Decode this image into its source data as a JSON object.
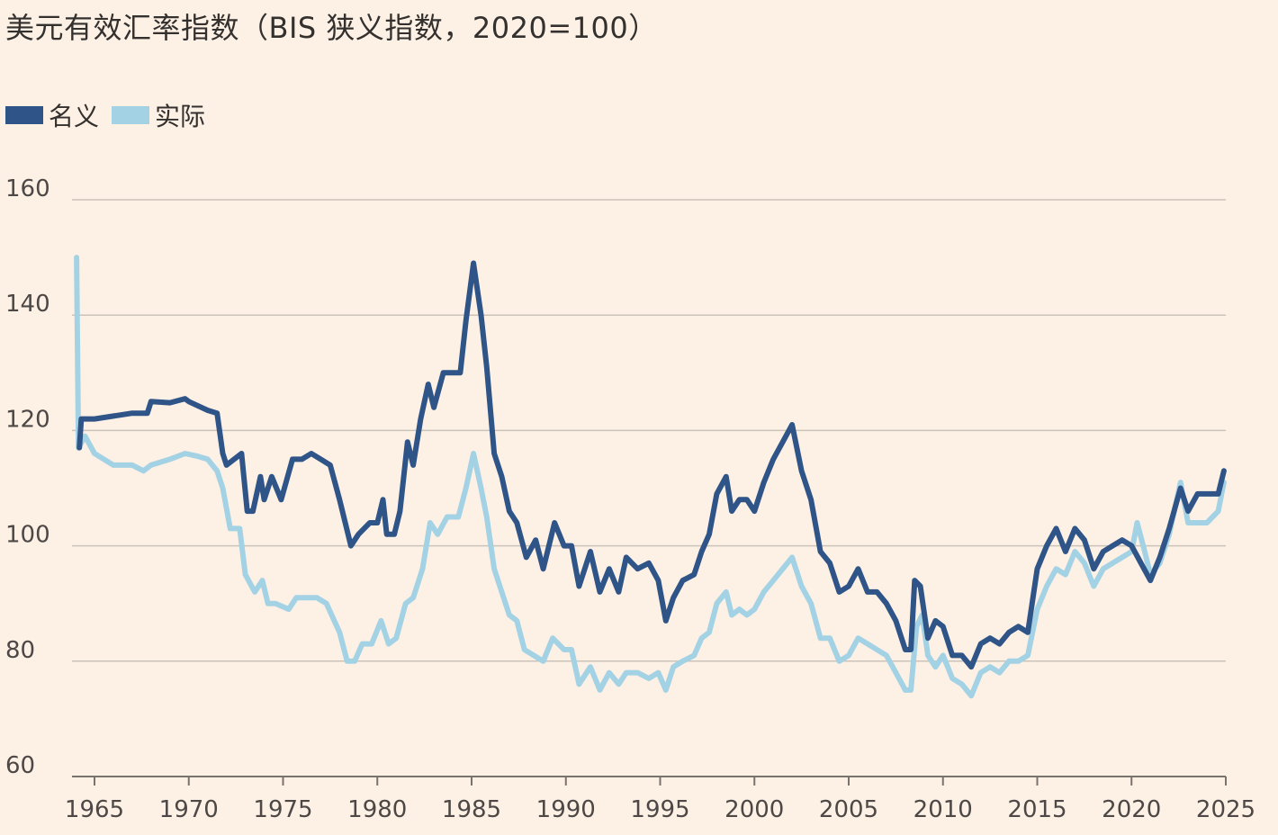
{
  "colors": {
    "background": "#FDF1E6",
    "nominal": "#2F5487",
    "real": "#A4D2E5",
    "grid": "#CBC2B8",
    "axis": "#7A736D"
  },
  "chart_data": {
    "type": "line",
    "title": "美元有效汇率指数（BIS 狭义指数，2020=100）",
    "xlabel": "",
    "ylabel": "",
    "xlim": [
      1964,
      2025
    ],
    "ylim": [
      60,
      160
    ],
    "yticks": [
      "60",
      "80",
      "100",
      "120",
      "140",
      "160"
    ],
    "xticks": [
      "1965",
      "1970",
      "1975",
      "1980",
      "1985",
      "1990",
      "1995",
      "2000",
      "2005",
      "2010",
      "2015",
      "2020",
      "2025"
    ],
    "grid": true,
    "legend_position": "top-left",
    "series": [
      {
        "name": "名义",
        "color": "#2F5487",
        "points": [
          [
            1964.2,
            117
          ],
          [
            1964.3,
            122
          ],
          [
            1965,
            122
          ],
          [
            1966,
            122.5
          ],
          [
            1967,
            123
          ],
          [
            1967.8,
            123
          ],
          [
            1968,
            125
          ],
          [
            1969,
            124.8
          ],
          [
            1969.8,
            125.5
          ],
          [
            1970,
            125
          ],
          [
            1971,
            123.5
          ],
          [
            1971.5,
            123
          ],
          [
            1971.8,
            116
          ],
          [
            1972,
            114
          ],
          [
            1972.8,
            116
          ],
          [
            1973.1,
            106
          ],
          [
            1973.4,
            106
          ],
          [
            1973.8,
            112
          ],
          [
            1974,
            108
          ],
          [
            1974.4,
            112
          ],
          [
            1974.9,
            108
          ],
          [
            1975.5,
            115
          ],
          [
            1976,
            115
          ],
          [
            1976.5,
            116
          ],
          [
            1977,
            115
          ],
          [
            1977.5,
            114
          ],
          [
            1978,
            108
          ],
          [
            1978.3,
            104
          ],
          [
            1978.6,
            100
          ],
          [
            1979,
            102
          ],
          [
            1979.6,
            104
          ],
          [
            1980,
            104
          ],
          [
            1980.3,
            108
          ],
          [
            1980.5,
            102
          ],
          [
            1980.9,
            102
          ],
          [
            1981.2,
            106
          ],
          [
            1981.6,
            118
          ],
          [
            1981.9,
            114
          ],
          [
            1982.3,
            122
          ],
          [
            1982.7,
            128
          ],
          [
            1983,
            124
          ],
          [
            1983.5,
            130
          ],
          [
            1983.9,
            130
          ],
          [
            1984.4,
            130
          ],
          [
            1984.7,
            139
          ],
          [
            1985.1,
            149
          ],
          [
            1985.5,
            140
          ],
          [
            1985.8,
            131
          ],
          [
            1986.2,
            116
          ],
          [
            1986.6,
            112
          ],
          [
            1987,
            106
          ],
          [
            1987.4,
            104
          ],
          [
            1987.9,
            98
          ],
          [
            1988.4,
            101
          ],
          [
            1988.8,
            96
          ],
          [
            1989.4,
            104
          ],
          [
            1989.9,
            100
          ],
          [
            1990.3,
            100
          ],
          [
            1990.7,
            93
          ],
          [
            1991.3,
            99
          ],
          [
            1991.8,
            92
          ],
          [
            1992.3,
            96
          ],
          [
            1992.8,
            92
          ],
          [
            1993.2,
            98
          ],
          [
            1993.8,
            96
          ],
          [
            1994.4,
            97
          ],
          [
            1994.9,
            94
          ],
          [
            1995.3,
            87
          ],
          [
            1995.7,
            91
          ],
          [
            1996.2,
            94
          ],
          [
            1996.8,
            95
          ],
          [
            1997.2,
            99
          ],
          [
            1997.6,
            102
          ],
          [
            1998,
            109
          ],
          [
            1998.5,
            112
          ],
          [
            1998.8,
            106
          ],
          [
            1999.2,
            108
          ],
          [
            1999.6,
            108
          ],
          [
            2000,
            106
          ],
          [
            2000.5,
            111
          ],
          [
            2001,
            115
          ],
          [
            2001.5,
            118
          ],
          [
            2002,
            121
          ],
          [
            2002.5,
            113
          ],
          [
            2003,
            108
          ],
          [
            2003.5,
            99
          ],
          [
            2004,
            97
          ],
          [
            2004.5,
            92
          ],
          [
            2005,
            93
          ],
          [
            2005.5,
            96
          ],
          [
            2006,
            92
          ],
          [
            2006.5,
            92
          ],
          [
            2007,
            90
          ],
          [
            2007.5,
            87
          ],
          [
            2008,
            82
          ],
          [
            2008.3,
            82
          ],
          [
            2008.5,
            94
          ],
          [
            2008.8,
            93
          ],
          [
            2009.2,
            84
          ],
          [
            2009.6,
            87
          ],
          [
            2010,
            86
          ],
          [
            2010.5,
            81
          ],
          [
            2011,
            81
          ],
          [
            2011.5,
            79
          ],
          [
            2012,
            83
          ],
          [
            2012.5,
            84
          ],
          [
            2013,
            83
          ],
          [
            2013.5,
            85
          ],
          [
            2014,
            86
          ],
          [
            2014.5,
            85
          ],
          [
            2015,
            96
          ],
          [
            2015.5,
            100
          ],
          [
            2016,
            103
          ],
          [
            2016.5,
            99
          ],
          [
            2017,
            103
          ],
          [
            2017.5,
            101
          ],
          [
            2018,
            96
          ],
          [
            2018.5,
            99
          ],
          [
            2019,
            100
          ],
          [
            2019.5,
            101
          ],
          [
            2020,
            100
          ],
          [
            2020.5,
            97
          ],
          [
            2021,
            94
          ],
          [
            2021.5,
            98
          ],
          [
            2022,
            103
          ],
          [
            2022.6,
            110
          ],
          [
            2023,
            106
          ],
          [
            2023.5,
            109
          ],
          [
            2024,
            109
          ],
          [
            2024.6,
            109
          ],
          [
            2024.9,
            113
          ]
        ]
      },
      {
        "name": "实际",
        "color": "#A4D2E5",
        "points": [
          [
            1964.05,
            150
          ],
          [
            1964.15,
            117
          ],
          [
            1964.5,
            119
          ],
          [
            1965,
            116
          ],
          [
            1966,
            114
          ],
          [
            1967,
            114
          ],
          [
            1967.6,
            113
          ],
          [
            1968,
            114
          ],
          [
            1969,
            115
          ],
          [
            1969.8,
            116
          ],
          [
            1970.5,
            115.5
          ],
          [
            1971,
            115
          ],
          [
            1971.5,
            113
          ],
          [
            1971.8,
            110
          ],
          [
            1972.2,
            103
          ],
          [
            1972.7,
            103
          ],
          [
            1973,
            95
          ],
          [
            1973.5,
            92
          ],
          [
            1973.9,
            94
          ],
          [
            1974.2,
            90
          ],
          [
            1974.6,
            90
          ],
          [
            1975.3,
            89
          ],
          [
            1975.7,
            91
          ],
          [
            1976.2,
            91
          ],
          [
            1976.8,
            91
          ],
          [
            1977.3,
            90
          ],
          [
            1978,
            85
          ],
          [
            1978.4,
            80
          ],
          [
            1978.8,
            80
          ],
          [
            1979.2,
            83
          ],
          [
            1979.7,
            83
          ],
          [
            1980.2,
            87
          ],
          [
            1980.6,
            83
          ],
          [
            1981,
            84
          ],
          [
            1981.5,
            90
          ],
          [
            1981.9,
            91
          ],
          [
            1982.4,
            96
          ],
          [
            1982.8,
            104
          ],
          [
            1983.2,
            102
          ],
          [
            1983.7,
            105
          ],
          [
            1984.3,
            105
          ],
          [
            1984.7,
            110
          ],
          [
            1985.1,
            116
          ],
          [
            1985.5,
            110
          ],
          [
            1985.8,
            105
          ],
          [
            1986.2,
            96
          ],
          [
            1986.6,
            92
          ],
          [
            1987,
            88
          ],
          [
            1987.4,
            87
          ],
          [
            1987.8,
            82
          ],
          [
            1988.3,
            81
          ],
          [
            1988.8,
            80
          ],
          [
            1989.3,
            84
          ],
          [
            1989.9,
            82
          ],
          [
            1990.3,
            82
          ],
          [
            1990.7,
            76
          ],
          [
            1991.3,
            79
          ],
          [
            1991.8,
            75
          ],
          [
            1992.3,
            78
          ],
          [
            1992.8,
            76
          ],
          [
            1993.2,
            78
          ],
          [
            1993.8,
            78
          ],
          [
            1994.4,
            77
          ],
          [
            1994.9,
            78
          ],
          [
            1995.3,
            75
          ],
          [
            1995.7,
            79
          ],
          [
            1996.2,
            80
          ],
          [
            1996.8,
            81
          ],
          [
            1997.2,
            84
          ],
          [
            1997.6,
            85
          ],
          [
            1998,
            90
          ],
          [
            1998.5,
            92
          ],
          [
            1998.8,
            88
          ],
          [
            1999.2,
            89
          ],
          [
            1999.6,
            88
          ],
          [
            2000,
            89
          ],
          [
            2000.5,
            92
          ],
          [
            2001,
            94
          ],
          [
            2001.5,
            96
          ],
          [
            2002,
            98
          ],
          [
            2002.5,
            93
          ],
          [
            2003,
            90
          ],
          [
            2003.5,
            84
          ],
          [
            2004,
            84
          ],
          [
            2004.5,
            80
          ],
          [
            2005,
            81
          ],
          [
            2005.5,
            84
          ],
          [
            2006,
            83
          ],
          [
            2006.5,
            82
          ],
          [
            2007,
            81
          ],
          [
            2007.5,
            78
          ],
          [
            2008,
            75
          ],
          [
            2008.3,
            75
          ],
          [
            2008.6,
            86
          ],
          [
            2008.9,
            88
          ],
          [
            2009.2,
            81
          ],
          [
            2009.6,
            79
          ],
          [
            2010,
            81
          ],
          [
            2010.5,
            77
          ],
          [
            2011,
            76
          ],
          [
            2011.5,
            74
          ],
          [
            2012,
            78
          ],
          [
            2012.5,
            79
          ],
          [
            2013,
            78
          ],
          [
            2013.5,
            80
          ],
          [
            2014,
            80
          ],
          [
            2014.5,
            81
          ],
          [
            2015,
            89
          ],
          [
            2015.5,
            93
          ],
          [
            2016,
            96
          ],
          [
            2016.5,
            95
          ],
          [
            2017,
            99
          ],
          [
            2017.5,
            97
          ],
          [
            2018,
            93
          ],
          [
            2018.5,
            96
          ],
          [
            2019,
            97
          ],
          [
            2019.5,
            98
          ],
          [
            2020,
            99
          ],
          [
            2020.3,
            104
          ],
          [
            2020.7,
            99
          ],
          [
            2021,
            95
          ],
          [
            2021.5,
            97
          ],
          [
            2022,
            102
          ],
          [
            2022.6,
            111
          ],
          [
            2023,
            104
          ],
          [
            2023.5,
            104
          ],
          [
            2024,
            104
          ],
          [
            2024.6,
            106
          ],
          [
            2024.9,
            111
          ]
        ]
      }
    ]
  }
}
